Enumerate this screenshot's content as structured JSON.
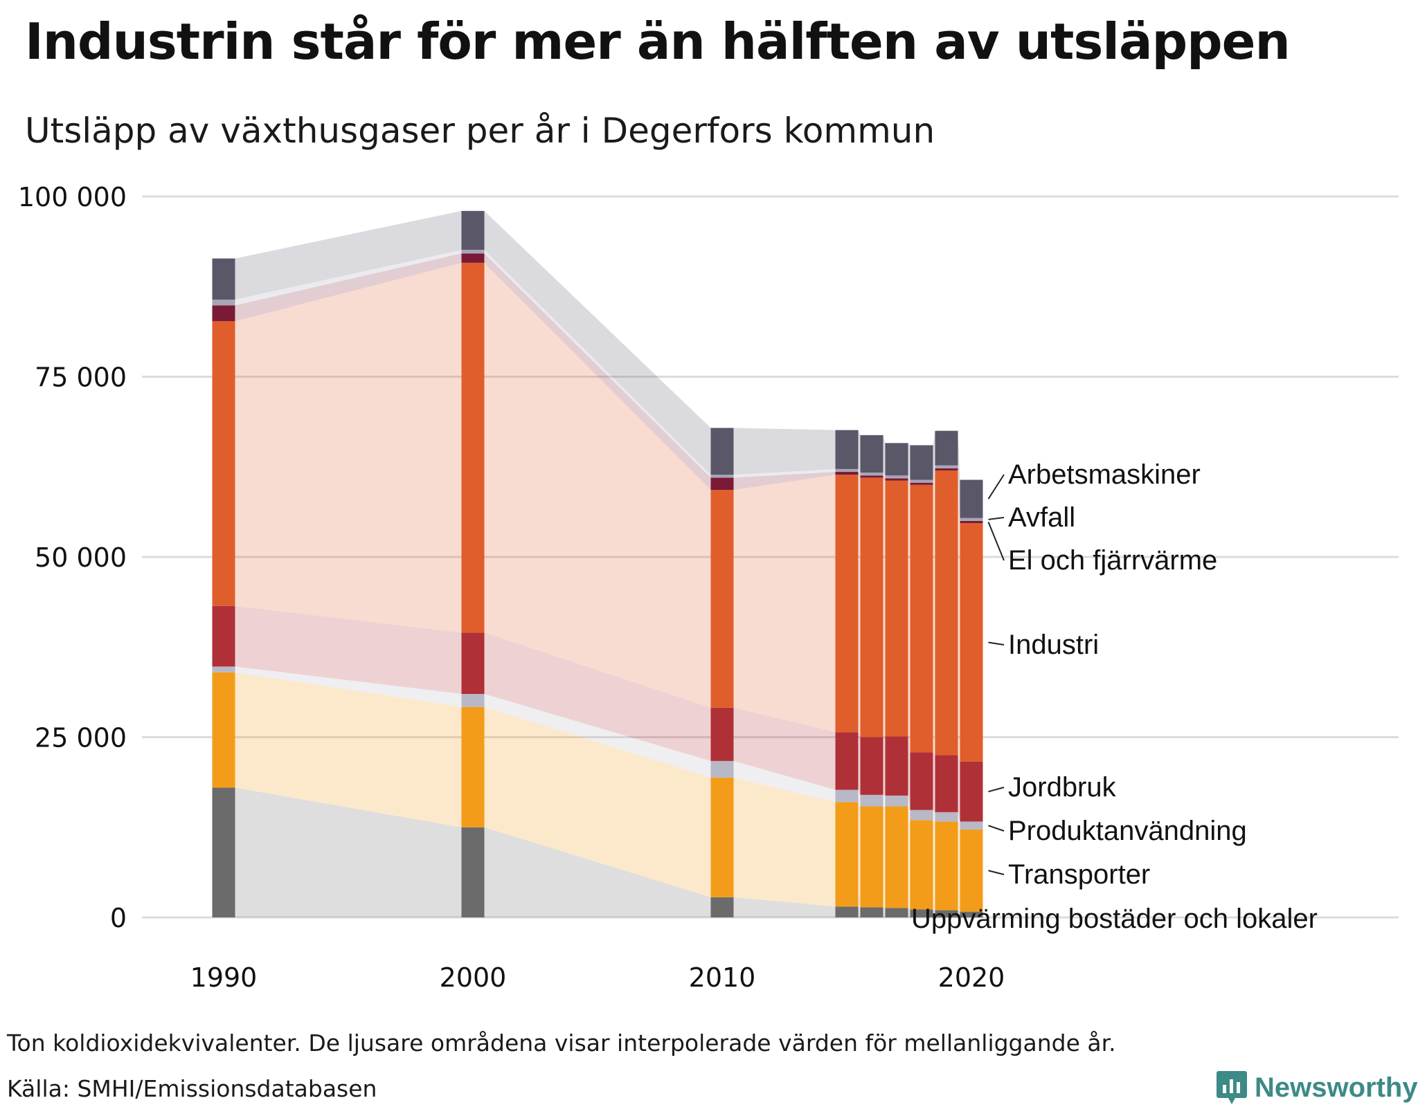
{
  "title": "Industrin står för mer än hälften av utsläppen",
  "subtitle": "Utsläpp av växthusgaser per år i Degerfors kommun",
  "footer": {
    "note": "Ton koldioxidekvivalenter. De ljusare områdena visar interpolerade värden för mellanliggande år.",
    "source": "Källa: SMHI/Emissionsdatabasen"
  },
  "brand": {
    "name": "Newsworthy",
    "icon": "chart-bubble-icon",
    "color": "#3d8a86"
  },
  "chart_data": {
    "type": "bar",
    "stacked": true,
    "x": [
      1990,
      2000,
      2010,
      2015,
      2016,
      2017,
      2018,
      2019,
      2020
    ],
    "x_tick_labels": [
      "1990",
      "2000",
      "2010",
      "2020"
    ],
    "x_ticks": [
      1990,
      2000,
      2010,
      2020
    ],
    "ylim": [
      0,
      100000
    ],
    "y_ticks": [
      0,
      25000,
      50000,
      75000,
      100000
    ],
    "y_tick_labels": [
      "0",
      "25 000",
      "50 000",
      "75 000",
      "100 000"
    ],
    "grid": true,
    "legend": "right",
    "interpolated_area_opacity": 0.22,
    "series": [
      {
        "name": "Uppvärming bostäder och lokaler",
        "color": "#6b6b6b",
        "area_color": "#9a9a9a",
        "values": [
          18000,
          12500,
          2800,
          1500,
          1400,
          1300,
          1100,
          1000,
          800
        ]
      },
      {
        "name": "Transporter",
        "color": "#f39c19",
        "area_color": "#f5c57a",
        "values": [
          16000,
          16700,
          16600,
          14500,
          14000,
          14100,
          12400,
          12300,
          11400
        ]
      },
      {
        "name": "Produktanvändning",
        "color": "#b8b8c6",
        "area_color": "#c9c9d6",
        "values": [
          800,
          1800,
          2300,
          1700,
          1600,
          1500,
          1400,
          1300,
          1100
        ]
      },
      {
        "name": "Jordbruk",
        "color": "#b03038",
        "area_color": "#c47a86",
        "values": [
          8400,
          8500,
          7400,
          8000,
          8000,
          8200,
          8000,
          7900,
          8300
        ]
      },
      {
        "name": "Industri",
        "color": "#e05e2c",
        "area_color": "#f2a48c",
        "values": [
          39500,
          51300,
          30200,
          35700,
          36000,
          35500,
          37100,
          39500,
          33100
        ]
      },
      {
        "name": "El och fjärrvärme",
        "color": "#7a1a36",
        "area_color": "#b5758a",
        "values": [
          2200,
          1300,
          1700,
          400,
          300,
          300,
          300,
          300,
          300
        ]
      },
      {
        "name": "Avfall",
        "color": "#a6a6b6",
        "area_color": "#c6c6d2",
        "values": [
          800,
          500,
          400,
          400,
          400,
          400,
          400,
          400,
          400
        ]
      },
      {
        "name": "Arbetsmaskiner",
        "color": "#5a5769",
        "area_color": "#a3a1ae",
        "values": [
          5700,
          5400,
          6500,
          5400,
          5200,
          4500,
          4800,
          4800,
          5300
        ]
      }
    ]
  }
}
